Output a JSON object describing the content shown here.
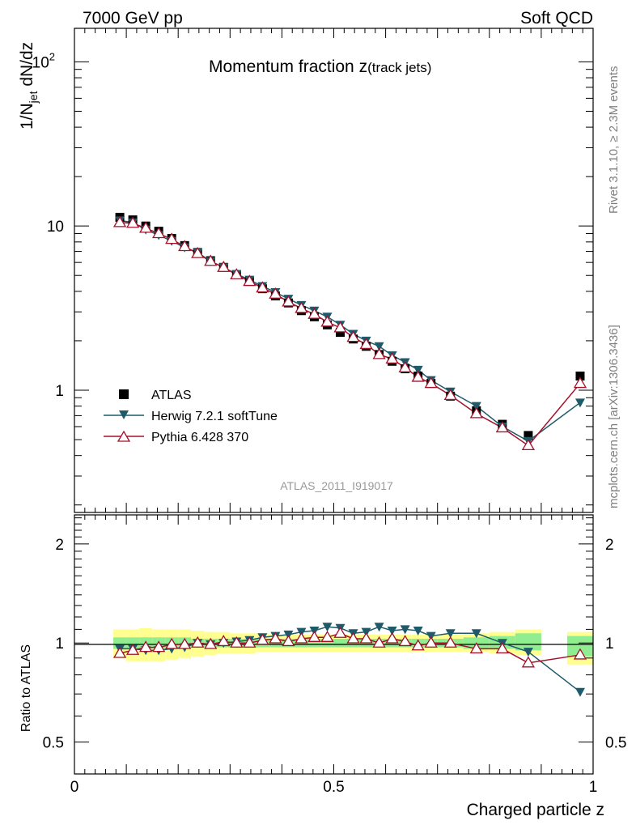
{
  "header": {
    "energy_label": "7000 GeV pp",
    "category_label": "Soft QCD"
  },
  "side_labels": {
    "rivet": "Rivet 3.1.10, ≥ 2.3M events",
    "mcplots": "mcplots.cern.ch [arXiv:1306.3436]"
  },
  "colors": {
    "atlas": "#000000",
    "herwig": "#1f5a6b",
    "pythia": "#a3102a",
    "band_inner": "#90ee90",
    "band_outer": "#ffff90"
  },
  "chart_data": [
    {
      "type": "scatter",
      "title": "Momentum fraction z(track jets)",
      "title_main": "Momentum fraction z",
      "title_sub": "(track jets)",
      "ylabel": "1/N_jet dN/dz",
      "ylabel_main": "1/N",
      "ylabel_sub": "jet",
      "ylabel_tail": " dN/dz",
      "yscale": "log",
      "xlim": [
        0,
        1
      ],
      "ylim": [
        0.18,
        160
      ],
      "yticks": [
        {
          "value": 1,
          "label": "1"
        },
        {
          "value": 10,
          "label": "10"
        },
        {
          "value": 100,
          "label": "10",
          "exp": "2"
        }
      ],
      "watermark": "ATLAS_2011_I919017",
      "legend_position": "lower-left",
      "legend": [
        "ATLAS",
        "Herwig 7.2.1 softTune",
        "Pythia 6.428 370"
      ],
      "x": [
        0.0875,
        0.1125,
        0.1375,
        0.1625,
        0.1875,
        0.2125,
        0.2375,
        0.2625,
        0.2875,
        0.3125,
        0.3375,
        0.3625,
        0.3875,
        0.4125,
        0.4375,
        0.4625,
        0.4875,
        0.5125,
        0.5375,
        0.5625,
        0.5875,
        0.6125,
        0.6375,
        0.6625,
        0.6875,
        0.725,
        0.775,
        0.825,
        0.875,
        0.975
      ],
      "series": [
        {
          "name": "ATLAS",
          "marker": "square",
          "values": [
            11.3,
            10.9,
            10.0,
            9.3,
            8.4,
            7.6,
            6.9,
            6.15,
            5.6,
            5.05,
            4.6,
            4.15,
            3.75,
            3.4,
            3.05,
            2.8,
            2.5,
            2.25,
            2.05,
            1.85,
            1.65,
            1.5,
            1.35,
            1.22,
            1.1,
            0.92,
            0.75,
            0.62,
            0.53,
            1.22
          ]
        },
        {
          "name": "Herwig 7.2.1 softTune",
          "marker": "triangle-down",
          "values": [
            10.8,
            10.5,
            9.5,
            8.8,
            8.1,
            7.4,
            6.9,
            6.1,
            5.6,
            5.1,
            4.7,
            4.3,
            3.95,
            3.6,
            3.3,
            3.05,
            2.8,
            2.5,
            2.2,
            2.0,
            1.85,
            1.63,
            1.48,
            1.33,
            1.15,
            0.98,
            0.8,
            0.6,
            0.49,
            0.84
          ]
        },
        {
          "name": "Pythia 6.428 370",
          "marker": "triangle-up-open",
          "values": [
            10.5,
            10.4,
            9.7,
            9.0,
            8.3,
            7.5,
            6.8,
            6.1,
            5.6,
            5.05,
            4.6,
            4.2,
            3.85,
            3.45,
            3.15,
            2.9,
            2.6,
            2.4,
            2.1,
            1.9,
            1.65,
            1.55,
            1.37,
            1.2,
            1.1,
            0.93,
            0.72,
            0.59,
            0.46,
            1.1
          ]
        }
      ]
    },
    {
      "type": "scatter",
      "title": "",
      "xlabel": "Charged particle z",
      "ylabel": "Ratio to ATLAS",
      "yscale": "log",
      "xlim": [
        0,
        1
      ],
      "ylim": [
        0.4,
        2.45
      ],
      "xticks": [
        {
          "value": 0,
          "label": "0"
        },
        {
          "value": 0.5,
          "label": "0.5"
        },
        {
          "value": 1,
          "label": "1"
        }
      ],
      "yticks": [
        {
          "value": 0.5,
          "label": "0.5"
        },
        {
          "value": 1,
          "label": "1"
        },
        {
          "value": 2,
          "label": "2"
        }
      ],
      "x": [
        0.0875,
        0.1125,
        0.1375,
        0.1625,
        0.1875,
        0.2125,
        0.2375,
        0.2625,
        0.2875,
        0.3125,
        0.3375,
        0.3625,
        0.3875,
        0.4125,
        0.4375,
        0.4625,
        0.4875,
        0.5125,
        0.5375,
        0.5625,
        0.5875,
        0.6125,
        0.6375,
        0.6625,
        0.6875,
        0.725,
        0.775,
        0.825,
        0.875,
        0.975
      ],
      "bin_edges": [
        0.075,
        0.1,
        0.125,
        0.15,
        0.175,
        0.2,
        0.225,
        0.25,
        0.275,
        0.3,
        0.325,
        0.35,
        0.375,
        0.4,
        0.425,
        0.45,
        0.475,
        0.5,
        0.525,
        0.55,
        0.575,
        0.6,
        0.625,
        0.65,
        0.675,
        0.7,
        0.75,
        0.8,
        0.85,
        0.9,
        0.95,
        1.0
      ],
      "band_bins": [
        {
          "x0": 0.075,
          "x1": 0.1,
          "inner": [
            0.96,
            1.04
          ],
          "outer": [
            0.9,
            1.1
          ]
        },
        {
          "x0": 0.1,
          "x1": 0.125,
          "inner": [
            0.96,
            1.04
          ],
          "outer": [
            0.88,
            1.1
          ]
        },
        {
          "x0": 0.125,
          "x1": 0.15,
          "inner": [
            0.96,
            1.04
          ],
          "outer": [
            0.88,
            1.11
          ]
        },
        {
          "x0": 0.15,
          "x1": 0.175,
          "inner": [
            0.96,
            1.04
          ],
          "outer": [
            0.88,
            1.1
          ]
        },
        {
          "x0": 0.175,
          "x1": 0.2,
          "inner": [
            0.96,
            1.04
          ],
          "outer": [
            0.89,
            1.1
          ]
        },
        {
          "x0": 0.2,
          "x1": 0.225,
          "inner": [
            0.96,
            1.04
          ],
          "outer": [
            0.9,
            1.1
          ]
        },
        {
          "x0": 0.225,
          "x1": 0.25,
          "inner": [
            0.97,
            1.03
          ],
          "outer": [
            0.91,
            1.09
          ]
        },
        {
          "x0": 0.25,
          "x1": 0.275,
          "inner": [
            0.97,
            1.03
          ],
          "outer": [
            0.92,
            1.08
          ]
        },
        {
          "x0": 0.275,
          "x1": 0.3,
          "inner": [
            0.97,
            1.03
          ],
          "outer": [
            0.93,
            1.08
          ]
        },
        {
          "x0": 0.3,
          "x1": 0.325,
          "inner": [
            0.97,
            1.03
          ],
          "outer": [
            0.93,
            1.07
          ]
        },
        {
          "x0": 0.325,
          "x1": 0.35,
          "inner": [
            0.97,
            1.03
          ],
          "outer": [
            0.93,
            1.07
          ]
        },
        {
          "x0": 0.35,
          "x1": 0.375,
          "inner": [
            0.97,
            1.03
          ],
          "outer": [
            0.94,
            1.07
          ]
        },
        {
          "x0": 0.375,
          "x1": 0.4,
          "inner": [
            0.97,
            1.03
          ],
          "outer": [
            0.94,
            1.06
          ]
        },
        {
          "x0": 0.4,
          "x1": 0.425,
          "inner": [
            0.97,
            1.03
          ],
          "outer": [
            0.94,
            1.06
          ]
        },
        {
          "x0": 0.425,
          "x1": 0.45,
          "inner": [
            0.97,
            1.03
          ],
          "outer": [
            0.94,
            1.06
          ]
        },
        {
          "x0": 0.45,
          "x1": 0.475,
          "inner": [
            0.97,
            1.03
          ],
          "outer": [
            0.94,
            1.06
          ]
        },
        {
          "x0": 0.475,
          "x1": 0.5,
          "inner": [
            0.97,
            1.03
          ],
          "outer": [
            0.94,
            1.06
          ]
        },
        {
          "x0": 0.5,
          "x1": 0.525,
          "inner": [
            0.97,
            1.03
          ],
          "outer": [
            0.94,
            1.06
          ]
        },
        {
          "x0": 0.525,
          "x1": 0.55,
          "inner": [
            0.97,
            1.03
          ],
          "outer": [
            0.94,
            1.06
          ]
        },
        {
          "x0": 0.55,
          "x1": 0.575,
          "inner": [
            0.97,
            1.03
          ],
          "outer": [
            0.94,
            1.06
          ]
        },
        {
          "x0": 0.575,
          "x1": 0.6,
          "inner": [
            0.97,
            1.03
          ],
          "outer": [
            0.94,
            1.06
          ]
        },
        {
          "x0": 0.6,
          "x1": 0.625,
          "inner": [
            0.97,
            1.03
          ],
          "outer": [
            0.94,
            1.06
          ]
        },
        {
          "x0": 0.625,
          "x1": 0.65,
          "inner": [
            0.97,
            1.03
          ],
          "outer": [
            0.94,
            1.06
          ]
        },
        {
          "x0": 0.65,
          "x1": 0.675,
          "inner": [
            0.97,
            1.03
          ],
          "outer": [
            0.94,
            1.06
          ]
        },
        {
          "x0": 0.675,
          "x1": 0.7,
          "inner": [
            0.97,
            1.03
          ],
          "outer": [
            0.94,
            1.06
          ]
        },
        {
          "x0": 0.7,
          "x1": 0.75,
          "inner": [
            0.97,
            1.03
          ],
          "outer": [
            0.94,
            1.06
          ]
        },
        {
          "x0": 0.75,
          "x1": 0.8,
          "inner": [
            0.96,
            1.04
          ],
          "outer": [
            0.94,
            1.07
          ]
        },
        {
          "x0": 0.8,
          "x1": 0.85,
          "inner": [
            0.96,
            1.05
          ],
          "outer": [
            0.93,
            1.08
          ]
        },
        {
          "x0": 0.85,
          "x1": 0.9,
          "inner": [
            0.95,
            1.07
          ],
          "outer": [
            0.92,
            1.1
          ]
        },
        {
          "x0": 0.95,
          "x1": 1.0,
          "inner": [
            0.91,
            1.05
          ],
          "outer": [
            0.86,
            1.08
          ]
        }
      ],
      "series": [
        {
          "name": "Herwig 7.2.1 softTune",
          "marker": "triangle-down",
          "values": [
            0.96,
            0.96,
            0.95,
            0.95,
            0.96,
            0.97,
            1.0,
            0.99,
            1.0,
            1.01,
            1.02,
            1.04,
            1.05,
            1.06,
            1.08,
            1.09,
            1.12,
            1.11,
            1.07,
            1.08,
            1.12,
            1.09,
            1.1,
            1.09,
            1.05,
            1.07,
            1.07,
            1.0,
            0.94,
            0.71
          ]
        },
        {
          "name": "Pythia 6.428 370",
          "marker": "triangle-up-open",
          "values": [
            0.93,
            0.95,
            0.97,
            0.97,
            0.99,
            0.99,
            1.0,
            0.99,
            1.01,
            1.0,
            1.0,
            1.02,
            1.03,
            1.01,
            1.03,
            1.04,
            1.04,
            1.07,
            1.03,
            1.03,
            1.0,
            1.03,
            1.01,
            0.98,
            1.0,
            1.0,
            0.96,
            0.96,
            0.87,
            0.92
          ]
        }
      ]
    }
  ]
}
